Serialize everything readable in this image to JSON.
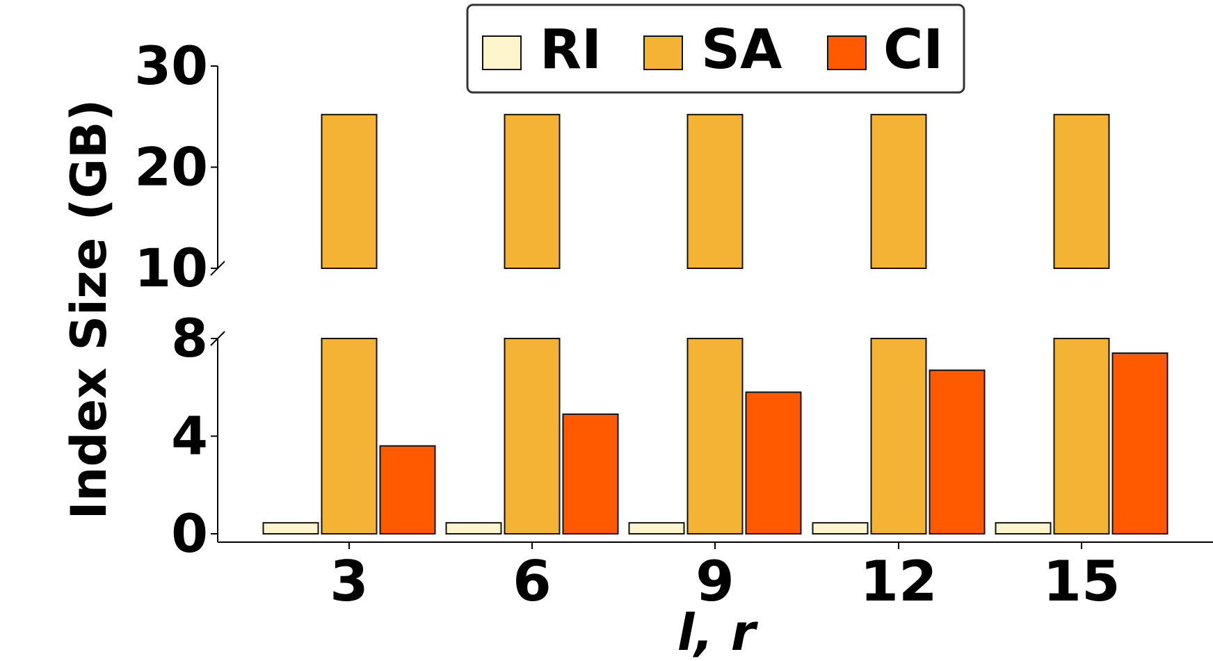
{
  "chart_data": {
    "type": "bar",
    "xlabel": "l, r",
    "ylabel": "Index Size (GB)",
    "categories": [
      "3",
      "6",
      "9",
      "12",
      "15"
    ],
    "series": [
      {
        "name": "RI",
        "color": "#fff5cc",
        "values": [
          0.45,
          0.45,
          0.45,
          0.45,
          0.45
        ]
      },
      {
        "name": "SA",
        "color": "#f5b335",
        "values": [
          25.2,
          25.2,
          25.2,
          25.2,
          25.2
        ]
      },
      {
        "name": "CI",
        "color": "#ff5a00",
        "values": [
          3.6,
          4.9,
          5.8,
          6.7,
          7.4
        ]
      }
    ],
    "broken_y_axis": true,
    "lower_ylim": [
      0,
      8
    ],
    "upper_ylim": [
      10,
      30
    ],
    "lower_yticks": [
      "0",
      "4",
      "8"
    ],
    "upper_yticks": [
      "10",
      "20",
      "30"
    ],
    "legend_position": "top-center",
    "grid": false
  }
}
